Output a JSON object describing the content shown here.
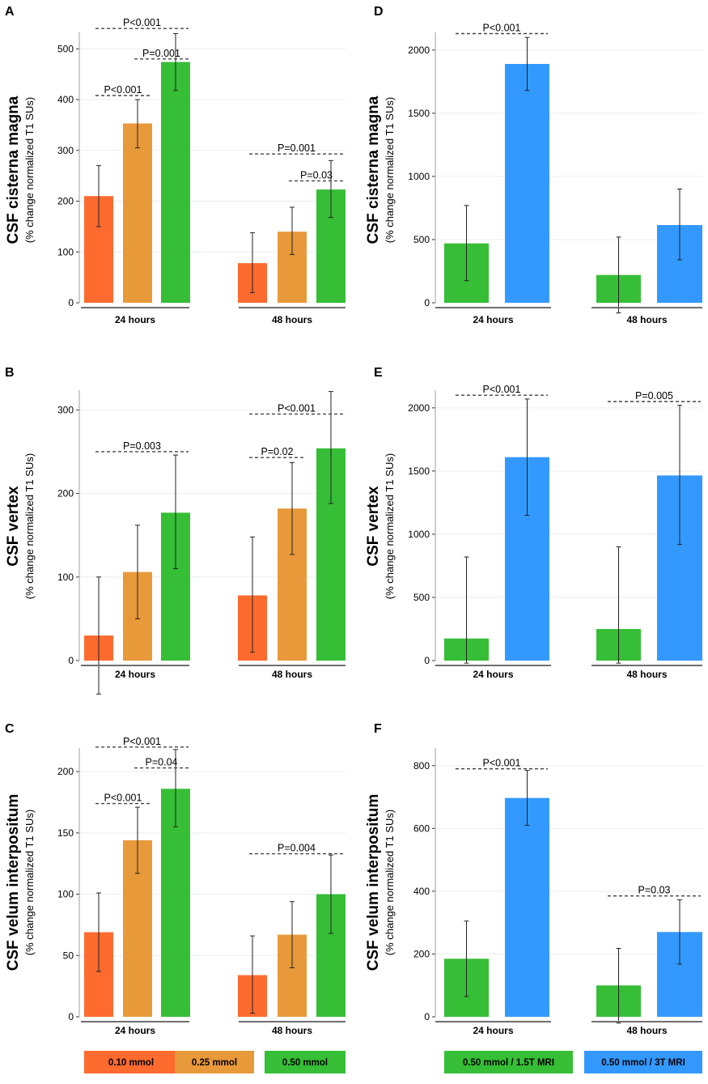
{
  "figure": {
    "legend_left": [
      {
        "label": "0.10 mmol",
        "color": "#FF6A2E"
      },
      {
        "label": "0.25 mmol",
        "color": "#E8993A"
      },
      {
        "label": "0.50 mmol",
        "color": "#36BE36"
      }
    ],
    "legend_right": [
      {
        "label": "0.50 mmol / 1.5T MRI",
        "color": "#36BE36"
      },
      {
        "label": "0.50 mmol / 3T MRI",
        "color": "#3399FF"
      }
    ]
  },
  "chart_data": [
    {
      "panel": "A",
      "type": "bar",
      "ylabel": "CSF cisterna magna",
      "ylabel_sub": "(% change normalized T1 SUs)",
      "ylim": [
        0,
        510
      ],
      "yticks": [
        0,
        100,
        200,
        300,
        400,
        500
      ],
      "groups": [
        "24 hours",
        "48 hours"
      ],
      "series": [
        {
          "name": "0.10 mmol",
          "color": "#FF6A2E",
          "values": [
            210,
            78
          ],
          "err_low": [
            150,
            20
          ],
          "err_high": [
            270,
            138
          ]
        },
        {
          "name": "0.25 mmol",
          "color": "#E8993A",
          "values": [
            353,
            140
          ],
          "err_low": [
            305,
            95
          ],
          "err_high": [
            400,
            188
          ]
        },
        {
          "name": "0.50 mmol",
          "color": "#36BE36",
          "values": [
            474,
            223
          ],
          "err_low": [
            418,
            168
          ],
          "err_high": [
            530,
            280
          ]
        }
      ],
      "annotations": [
        {
          "text": "P<0.001",
          "group": 0,
          "from": 0,
          "to": 2,
          "y": 540
        },
        {
          "text": "P=0.001",
          "group": 0,
          "from": 1,
          "to": 2,
          "y": 480
        },
        {
          "text": "P<0.001",
          "group": 0,
          "from": 0,
          "to": 1,
          "y": 408
        },
        {
          "text": "P=0.001",
          "group": 1,
          "from": 0,
          "to": 2,
          "y": 293
        },
        {
          "text": "P=0.03",
          "group": 1,
          "from": 1,
          "to": 2,
          "y": 240
        }
      ]
    },
    {
      "panel": "B",
      "type": "bar",
      "ylabel": "CSF vertex",
      "ylabel_sub": "(% change normalized T1 SUs)",
      "ylim": [
        0,
        310
      ],
      "yticks": [
        0,
        100,
        200,
        300
      ],
      "groups": [
        "24 hours",
        "48 hours"
      ],
      "series": [
        {
          "name": "0.10 mmol",
          "color": "#FF6A2E",
          "values": [
            30,
            78
          ],
          "err_low": [
            -40,
            10
          ],
          "err_high": [
            100,
            148
          ]
        },
        {
          "name": "0.25 mmol",
          "color": "#E8993A",
          "values": [
            106,
            182
          ],
          "err_low": [
            50,
            127
          ],
          "err_high": [
            162,
            237
          ]
        },
        {
          "name": "0.50 mmol",
          "color": "#36BE36",
          "values": [
            177,
            254
          ],
          "err_low": [
            110,
            188
          ],
          "err_high": [
            246,
            322
          ]
        }
      ],
      "annotations": [
        {
          "text": "P=0.003",
          "group": 0,
          "from": 0,
          "to": 2,
          "y": 250
        },
        {
          "text": "P<0.001",
          "group": 1,
          "from": 0,
          "to": 2,
          "y": 295
        },
        {
          "text": "P=0.02",
          "group": 1,
          "from": 0,
          "to": 1,
          "y": 243
        }
      ]
    },
    {
      "panel": "C",
      "type": "bar",
      "ylabel": "CSF velum interpositum",
      "ylabel_sub": "(% change normalized T1 SUs)",
      "ylim": [
        0,
        210
      ],
      "yticks": [
        0,
        50,
        100,
        150,
        200
      ],
      "groups": [
        "24 hours",
        "48 hours"
      ],
      "series": [
        {
          "name": "0.10 mmol",
          "color": "#FF6A2E",
          "values": [
            69,
            34
          ],
          "err_low": [
            37,
            3
          ],
          "err_high": [
            101,
            66
          ]
        },
        {
          "name": "0.25 mmol",
          "color": "#E8993A",
          "values": [
            144,
            67
          ],
          "err_low": [
            117,
            40
          ],
          "err_high": [
            171,
            94
          ]
        },
        {
          "name": "0.50 mmol",
          "color": "#36BE36",
          "values": [
            186,
            100
          ],
          "err_low": [
            155,
            68
          ],
          "err_high": [
            218,
            132
          ]
        }
      ],
      "annotations": [
        {
          "text": "P<0.001",
          "group": 0,
          "from": 0,
          "to": 2,
          "y": 220
        },
        {
          "text": "P=0.04",
          "group": 0,
          "from": 1,
          "to": 2,
          "y": 203
        },
        {
          "text": "P<0.001",
          "group": 0,
          "from": 0,
          "to": 1,
          "y": 174
        },
        {
          "text": "P=0.004",
          "group": 1,
          "from": 0,
          "to": 2,
          "y": 133
        }
      ]
    },
    {
      "panel": "D",
      "type": "bar",
      "ylabel": "CSF cisterna magna",
      "ylabel_sub": "(% change normalized T1 SUs)",
      "ylim": [
        0,
        2050
      ],
      "yticks": [
        0,
        500,
        1000,
        1500,
        2000
      ],
      "groups": [
        "24 hours",
        "48 hours"
      ],
      "series": [
        {
          "name": "0.50 mmol / 1.5T MRI",
          "color": "#36BE36",
          "values": [
            470,
            220
          ],
          "err_low": [
            175,
            -80
          ],
          "err_high": [
            770,
            520
          ]
        },
        {
          "name": "0.50 mmol / 3T MRI",
          "color": "#3399FF",
          "values": [
            1890,
            615
          ],
          "err_low": [
            1680,
            340
          ],
          "err_high": [
            2100,
            900
          ]
        }
      ],
      "annotations": [
        {
          "text": "P<0.001",
          "group": 0,
          "from": 0,
          "to": 1,
          "y": 2130
        }
      ]
    },
    {
      "panel": "E",
      "type": "bar",
      "ylabel": "CSF vertex",
      "ylabel_sub": "(% change normalized T1 SUs)",
      "ylim": [
        0,
        2050
      ],
      "yticks": [
        0,
        500,
        1000,
        1500,
        2000
      ],
      "groups": [
        "24 hours",
        "48 hours"
      ],
      "series": [
        {
          "name": "0.50 mmol / 1.5T MRI",
          "color": "#36BE36",
          "values": [
            175,
            250
          ],
          "err_low": [
            -20,
            -20
          ],
          "err_high": [
            820,
            900
          ]
        },
        {
          "name": "0.50 mmol / 3T MRI",
          "color": "#3399FF",
          "values": [
            1610,
            1465
          ],
          "err_low": [
            1150,
            920
          ],
          "err_high": [
            2070,
            2020
          ]
        }
      ],
      "annotations": [
        {
          "text": "P<0.001",
          "group": 0,
          "from": 0,
          "to": 1,
          "y": 2100
        },
        {
          "text": "P=0.005",
          "group": 1,
          "from": 0,
          "to": 1,
          "y": 2050
        }
      ]
    },
    {
      "panel": "F",
      "type": "bar",
      "ylabel": "CSF velum interpositum",
      "ylabel_sub": "(% change normalized T1 SUs)",
      "ylim": [
        0,
        820
      ],
      "yticks": [
        0,
        200,
        400,
        600,
        800
      ],
      "groups": [
        "24 hours",
        "48 hours"
      ],
      "series": [
        {
          "name": "0.50 mmol / 1.5T MRI",
          "color": "#36BE36",
          "values": [
            185,
            100
          ],
          "err_low": [
            65,
            -20
          ],
          "err_high": [
            305,
            218
          ]
        },
        {
          "name": "0.50 mmol / 3T MRI",
          "color": "#3399FF",
          "values": [
            697,
            270
          ],
          "err_low": [
            610,
            168
          ],
          "err_high": [
            785,
            373
          ]
        }
      ],
      "annotations": [
        {
          "text": "P<0.001",
          "group": 0,
          "from": 0,
          "to": 1,
          "y": 790
        },
        {
          "text": "P=0.03",
          "group": 1,
          "from": 0,
          "to": 1,
          "y": 385
        }
      ]
    }
  ]
}
